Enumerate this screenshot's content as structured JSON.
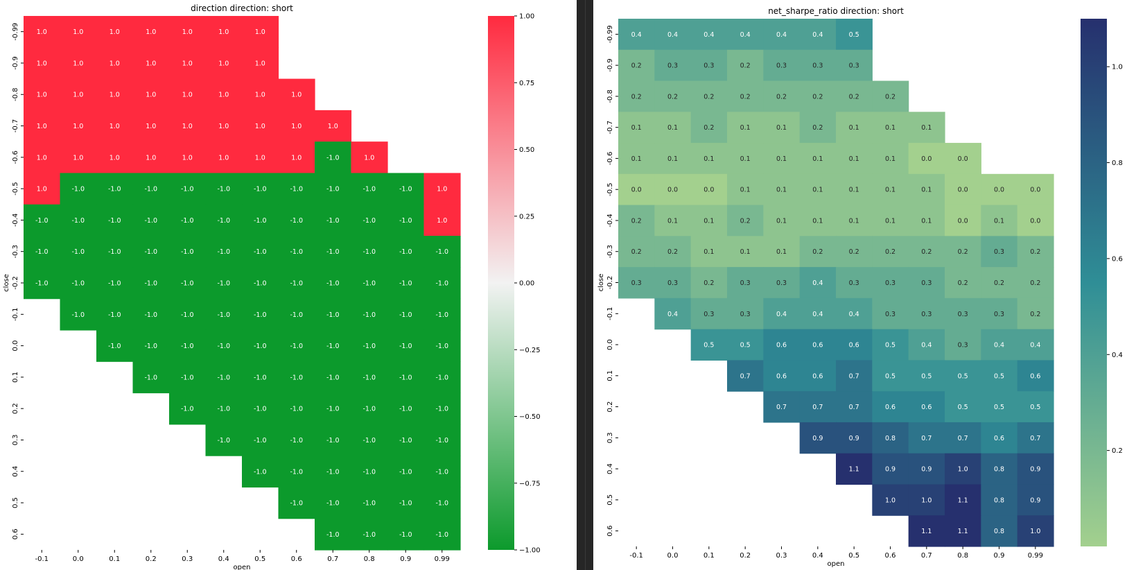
{
  "chart_data": [
    {
      "type": "heatmap",
      "title": "direction  direction: short",
      "xlabel": "open",
      "ylabel": "close",
      "x_ticks": [
        "-0.1",
        "0.0",
        "0.1",
        "0.2",
        "0.3",
        "0.4",
        "0.5",
        "0.6",
        "0.7",
        "0.8",
        "0.9",
        "0.99"
      ],
      "y_ticks": [
        "-0.99",
        "-0.9",
        "-0.8",
        "-0.7",
        "-0.6",
        "-0.5",
        "-0.4",
        "-0.3",
        "-0.2",
        "-0.1",
        "0.0",
        "0.1",
        "0.2",
        "0.3",
        "0.4",
        "0.5",
        "0.6"
      ],
      "colorbar": {
        "ticks": [
          "1.00",
          "0.75",
          "0.50",
          "0.25",
          "0.00",
          "−0.25",
          "−0.50",
          "−0.75",
          "−1.00"
        ],
        "min": -1,
        "max": 1,
        "colors": {
          "high": "#ff2a3f",
          "mid": "#f2f2f2",
          "low": "#0c9a2c"
        }
      },
      "matrix": [
        [
          "1.0",
          "1.0",
          "1.0",
          "1.0",
          "1.0",
          "1.0",
          "1.0",
          null,
          null,
          null,
          null,
          null
        ],
        [
          "1.0",
          "1.0",
          "1.0",
          "1.0",
          "1.0",
          "1.0",
          "1.0",
          null,
          null,
          null,
          null,
          null
        ],
        [
          "1.0",
          "1.0",
          "1.0",
          "1.0",
          "1.0",
          "1.0",
          "1.0",
          "1.0",
          null,
          null,
          null,
          null
        ],
        [
          "1.0",
          "1.0",
          "1.0",
          "1.0",
          "1.0",
          "1.0",
          "1.0",
          "1.0",
          "1.0",
          null,
          null,
          null
        ],
        [
          "1.0",
          "1.0",
          "1.0",
          "1.0",
          "1.0",
          "1.0",
          "1.0",
          "1.0",
          "-1.0",
          "1.0",
          null,
          null
        ],
        [
          "1.0",
          "-1.0",
          "-1.0",
          "-1.0",
          "-1.0",
          "-1.0",
          "-1.0",
          "-1.0",
          "-1.0",
          "-1.0",
          "-1.0",
          "1.0"
        ],
        [
          "-1.0",
          "-1.0",
          "-1.0",
          "-1.0",
          "-1.0",
          "-1.0",
          "-1.0",
          "-1.0",
          "-1.0",
          "-1.0",
          "-1.0",
          "1.0"
        ],
        [
          "-1.0",
          "-1.0",
          "-1.0",
          "-1.0",
          "-1.0",
          "-1.0",
          "-1.0",
          "-1.0",
          "-1.0",
          "-1.0",
          "-1.0",
          "-1.0"
        ],
        [
          "-1.0",
          "-1.0",
          "-1.0",
          "-1.0",
          "-1.0",
          "-1.0",
          "-1.0",
          "-1.0",
          "-1.0",
          "-1.0",
          "-1.0",
          "-1.0"
        ],
        [
          null,
          "-1.0",
          "-1.0",
          "-1.0",
          "-1.0",
          "-1.0",
          "-1.0",
          "-1.0",
          "-1.0",
          "-1.0",
          "-1.0",
          "-1.0"
        ],
        [
          null,
          null,
          "-1.0",
          "-1.0",
          "-1.0",
          "-1.0",
          "-1.0",
          "-1.0",
          "-1.0",
          "-1.0",
          "-1.0",
          "-1.0"
        ],
        [
          null,
          null,
          null,
          "-1.0",
          "-1.0",
          "-1.0",
          "-1.0",
          "-1.0",
          "-1.0",
          "-1.0",
          "-1.0",
          "-1.0"
        ],
        [
          null,
          null,
          null,
          null,
          "-1.0",
          "-1.0",
          "-1.0",
          "-1.0",
          "-1.0",
          "-1.0",
          "-1.0",
          "-1.0"
        ],
        [
          null,
          null,
          null,
          null,
          null,
          "-1.0",
          "-1.0",
          "-1.0",
          "-1.0",
          "-1.0",
          "-1.0",
          "-1.0"
        ],
        [
          null,
          null,
          null,
          null,
          null,
          null,
          "-1.0",
          "-1.0",
          "-1.0",
          "-1.0",
          "-1.0",
          "-1.0"
        ],
        [
          null,
          null,
          null,
          null,
          null,
          null,
          null,
          "-1.0",
          "-1.0",
          "-1.0",
          "-1.0",
          "-1.0"
        ],
        [
          null,
          null,
          null,
          null,
          null,
          null,
          null,
          null,
          "-1.0",
          "-1.0",
          "-1.0",
          "-1.0"
        ]
      ]
    },
    {
      "type": "heatmap",
      "title": "net_sharpe_ratio  direction: short",
      "xlabel": "open",
      "ylabel": "close",
      "x_ticks": [
        "-0.1",
        "0.0",
        "0.1",
        "0.2",
        "0.3",
        "0.4",
        "0.5",
        "0.6",
        "0.7",
        "0.8",
        "0.9",
        "0.99"
      ],
      "y_ticks": [
        "-0.99",
        "-0.9",
        "-0.8",
        "-0.7",
        "-0.6",
        "-0.5",
        "-0.4",
        "-0.3",
        "-0.2",
        "-0.1",
        "0.0",
        "0.1",
        "0.2",
        "0.3",
        "0.4",
        "0.5",
        "0.6"
      ],
      "colorbar": {
        "ticks": [
          "1.0",
          "0.8",
          "0.6",
          "0.4",
          "0.2"
        ],
        "min": 0.0,
        "max": 1.1,
        "colors": {
          "low": "#a3d08e",
          "mid": "#2f8e96",
          "high": "#26306e"
        }
      },
      "matrix": [
        [
          "0.4",
          "0.4",
          "0.4",
          "0.4",
          "0.4",
          "0.4",
          "0.5",
          null,
          null,
          null,
          null,
          null
        ],
        [
          "0.2",
          "0.3",
          "0.3",
          "0.2",
          "0.3",
          "0.3",
          "0.3",
          null,
          null,
          null,
          null,
          null
        ],
        [
          "0.2",
          "0.2",
          "0.2",
          "0.2",
          "0.2",
          "0.2",
          "0.2",
          "0.2",
          null,
          null,
          null,
          null
        ],
        [
          "0.1",
          "0.1",
          "0.2",
          "0.1",
          "0.1",
          "0.2",
          "0.1",
          "0.1",
          "0.1",
          null,
          null,
          null
        ],
        [
          "0.1",
          "0.1",
          "0.1",
          "0.1",
          "0.1",
          "0.1",
          "0.1",
          "0.1",
          "0.0",
          "0.0",
          null,
          null
        ],
        [
          "0.0",
          "0.0",
          "0.0",
          "0.1",
          "0.1",
          "0.1",
          "0.1",
          "0.1",
          "0.1",
          "0.0",
          "0.0",
          "0.0"
        ],
        [
          "0.2",
          "0.1",
          "0.1",
          "0.2",
          "0.1",
          "0.1",
          "0.1",
          "0.1",
          "0.1",
          "0.0",
          "0.1",
          "0.0"
        ],
        [
          "0.2",
          "0.2",
          "0.1",
          "0.1",
          "0.1",
          "0.2",
          "0.2",
          "0.2",
          "0.2",
          "0.2",
          "0.3",
          "0.2"
        ],
        [
          "0.3",
          "0.3",
          "0.2",
          "0.3",
          "0.3",
          "0.4",
          "0.3",
          "0.3",
          "0.3",
          "0.2",
          "0.2",
          "0.2"
        ],
        [
          null,
          "0.4",
          "0.3",
          "0.3",
          "0.4",
          "0.4",
          "0.4",
          "0.3",
          "0.3",
          "0.3",
          "0.3",
          "0.2"
        ],
        [
          null,
          null,
          "0.5",
          "0.5",
          "0.6",
          "0.6",
          "0.6",
          "0.5",
          "0.4",
          "0.3",
          "0.4",
          "0.4"
        ],
        [
          null,
          null,
          null,
          "0.7",
          "0.6",
          "0.6",
          "0.7",
          "0.5",
          "0.5",
          "0.5",
          "0.5",
          "0.6"
        ],
        [
          null,
          null,
          null,
          null,
          "0.7",
          "0.7",
          "0.7",
          "0.6",
          "0.6",
          "0.5",
          "0.5",
          "0.5"
        ],
        [
          null,
          null,
          null,
          null,
          null,
          "0.9",
          "0.9",
          "0.8",
          "0.7",
          "0.7",
          "0.6",
          "0.7"
        ],
        [
          null,
          null,
          null,
          null,
          null,
          null,
          "1.1",
          "0.9",
          "0.9",
          "1.0",
          "0.8",
          "0.9"
        ],
        [
          null,
          null,
          null,
          null,
          null,
          null,
          null,
          "1.0",
          "1.0",
          "1.1",
          "0.8",
          "0.9"
        ],
        [
          null,
          null,
          null,
          null,
          null,
          null,
          null,
          null,
          "1.1",
          "1.1",
          "0.8",
          "1.0"
        ]
      ]
    }
  ]
}
